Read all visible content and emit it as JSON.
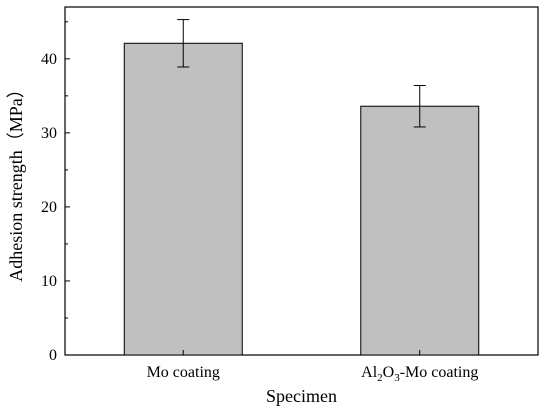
{
  "chart_data": {
    "type": "bar",
    "categories": [
      "Mo coating",
      "Al2O3-Mo coating"
    ],
    "category_labels": [
      [
        {
          "t": "Mo coating",
          "sub": false
        }
      ],
      [
        {
          "t": "Al",
          "sub": false
        },
        {
          "t": "2",
          "sub": true
        },
        {
          "t": "O",
          "sub": false
        },
        {
          "t": "3",
          "sub": true
        },
        {
          "t": "-Mo coating",
          "sub": false
        }
      ]
    ],
    "values": [
      42.1,
      33.6
    ],
    "errors": [
      3.2,
      2.8
    ],
    "xlabel": "Specimen",
    "ylabel": "Adhesion strength（MPa）",
    "ylim": [
      0,
      47
    ],
    "yticks": [
      0,
      10,
      20,
      30,
      40
    ],
    "bar_color": "#c0c0c0",
    "grid": false,
    "legend": "none"
  }
}
